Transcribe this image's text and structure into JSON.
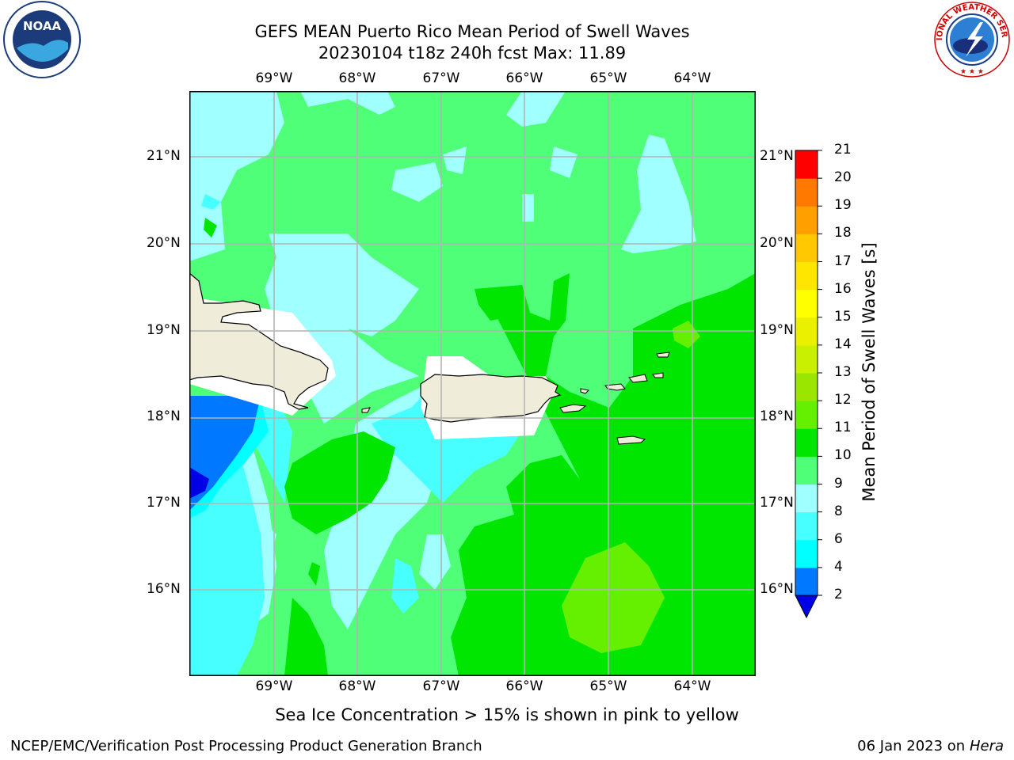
{
  "title": {
    "line1": "GEFS MEAN Puerto Rico Mean Period of Swell Waves",
    "line2": "20230104 t18z 240h fcst   Max: 11.89"
  },
  "map": {
    "lon_labels": [
      "69°W",
      "68°W",
      "67°W",
      "66°W",
      "65°W",
      "64°W"
    ],
    "lat_labels": [
      "21°N",
      "20°N",
      "19°N",
      "18°N",
      "17°N",
      "16°N"
    ],
    "colors": {
      "land": "#efedd9",
      "band_4_6": "#00ffff",
      "band_6_8": "#48ffff",
      "band_8_9": "#a0ffff",
      "band_9_10": "#50ff78",
      "band_10_11": "#00e600",
      "band_11_12": "#64f000",
      "band_2_4": "#0078ff",
      "below_2": "#0000e6",
      "grid": "#b4b4b4"
    }
  },
  "colorbar": {
    "label": "Mean Period of Swell Waves [s]",
    "ticks": [
      "2",
      "4",
      "6",
      "8",
      "9",
      "10",
      "11",
      "12",
      "13",
      "14",
      "15",
      "16",
      "17",
      "18",
      "19",
      "20",
      "21"
    ],
    "colors": [
      "#0078ff",
      "#00ffff",
      "#48ffff",
      "#a0ffff",
      "#50ff78",
      "#00e600",
      "#64f000",
      "#9be600",
      "#c8f000",
      "#ebf000",
      "#ffff00",
      "#ffe600",
      "#ffc800",
      "#ffa000",
      "#ff7800",
      "#ff4600",
      "#ff0000"
    ],
    "under_color": "#0000e6"
  },
  "caption": "Sea Ice Concentration > 15% is shown in pink to yellow",
  "footer": {
    "left": "NCEP/EMC/Verification Post Processing Product Generation Branch",
    "right_prefix": "06 Jan 2023 on ",
    "right_host": "Hera"
  },
  "logos": {
    "noaa": "NOAA",
    "nws": "NATIONAL WEATHER SERVICE"
  }
}
